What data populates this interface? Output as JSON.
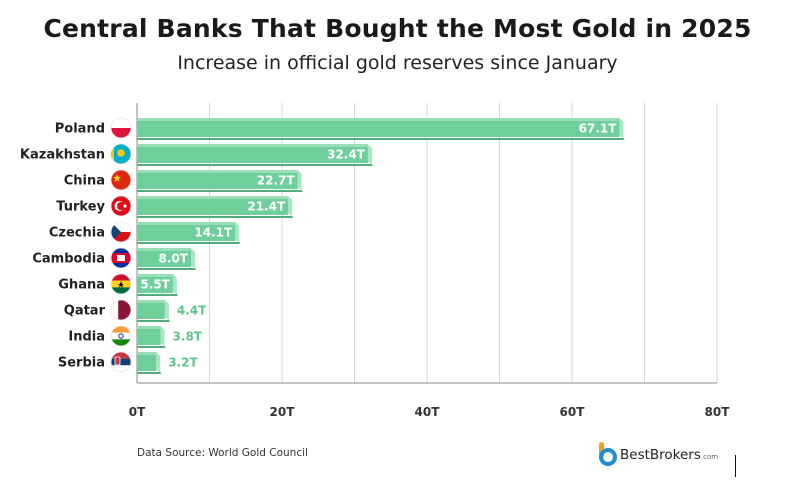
{
  "title": "Central Banks That Bought the Most Gold in 2025",
  "subtitle": "Increase in official gold reserves since January",
  "source": "Data Source: World Gold Council",
  "brand": {
    "name": "BestBrokers",
    "domain": ".com"
  },
  "colors": {
    "bar": "#6fcf9a",
    "bar_light": "#a9e6c4",
    "bar_dark": "#4fae7c",
    "label_outside": "#5cc48c",
    "grid": "#d5d5d5",
    "axis": "#888888"
  },
  "chart_data": {
    "type": "bar",
    "orientation": "horizontal",
    "categories": [
      "Poland",
      "Kazakhstan",
      "China",
      "Turkey",
      "Czechia",
      "Cambodia",
      "Ghana",
      "Qatar",
      "India",
      "Serbia"
    ],
    "values": [
      67.1,
      32.4,
      22.7,
      21.4,
      14.1,
      8.0,
      5.5,
      4.4,
      3.8,
      3.2
    ],
    "value_labels": [
      "67.1T",
      "32.4T",
      "22.7T",
      "21.4T",
      "14.1T",
      "8.0T",
      "5.5T",
      "4.4T",
      "3.8T",
      "3.2T"
    ],
    "xticks": [
      0,
      20,
      40,
      60,
      80
    ],
    "xtick_labels": [
      "0T",
      "20T",
      "40T",
      "60T",
      "80T"
    ],
    "xlim": [
      0,
      80
    ],
    "flags": [
      "poland-flag",
      "kazakhstan-flag",
      "china-flag",
      "turkey-flag",
      "czechia-flag",
      "cambodia-flag",
      "ghana-flag",
      "qatar-flag",
      "india-flag",
      "serbia-flag"
    ]
  }
}
